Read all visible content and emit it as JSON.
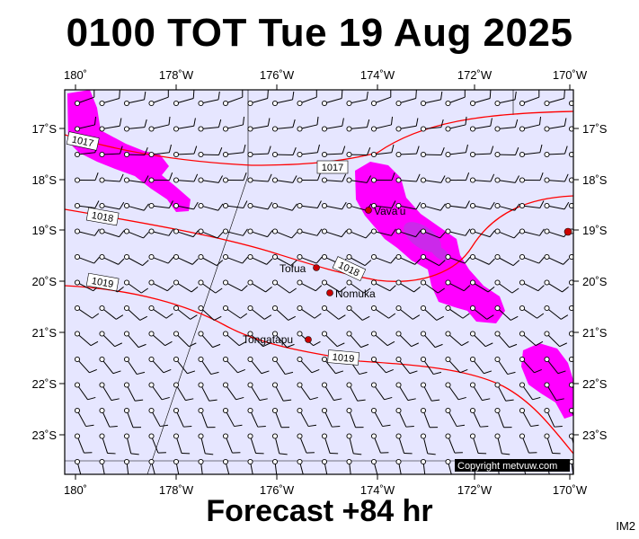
{
  "title": "0100 TOT Tue 19 Aug 2025",
  "footer": "Forecast +84 hr",
  "product_code": "IM2",
  "copyright": "Copyright metvuw.com",
  "colors": {
    "ocean": "#e6e6ff",
    "rain": "#ff00ff",
    "rain_heavy": "#b040e0",
    "isobar": "#ff0000",
    "city": "#cc0000"
  },
  "lon_labels": [
    "180˚",
    "178˚W",
    "176˚W",
    "174˚W",
    "172˚W",
    "170˚W"
  ],
  "lat_labels": [
    "17˚S",
    "18˚S",
    "19˚S",
    "20˚S",
    "21˚S",
    "22˚S",
    "23˚S"
  ],
  "isobar_labels": [
    "1017",
    "1017",
    "1018",
    "1018",
    "1019",
    "1019"
  ],
  "places": [
    {
      "name": "Vava'u"
    },
    {
      "name": "Tofua"
    },
    {
      "name": "Nomuka"
    },
    {
      "name": "Tongatapu"
    }
  ]
}
